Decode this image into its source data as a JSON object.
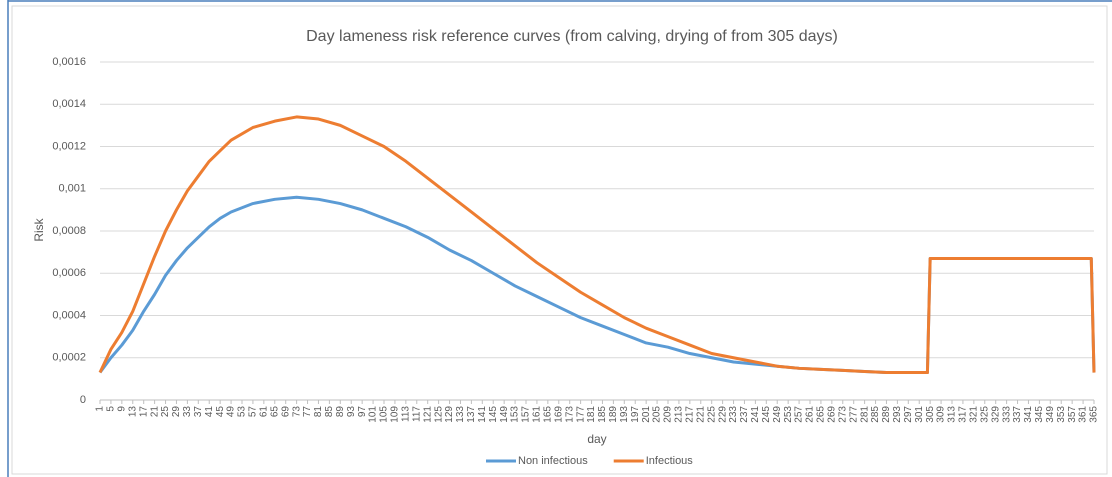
{
  "chart_data": {
    "type": "line",
    "title": "Day lameness risk reference curves (from calving, drying of from 305 days)",
    "x_label": "day",
    "y_label": "Risk",
    "x": [
      1,
      5,
      9,
      13,
      17,
      21,
      25,
      29,
      33,
      37,
      41,
      45,
      49,
      57,
      65,
      73,
      81,
      89,
      97,
      105,
      113,
      121,
      129,
      137,
      145,
      153,
      161,
      169,
      177,
      185,
      193,
      201,
      209,
      217,
      225,
      233,
      241,
      249,
      257,
      265,
      273,
      281,
      289,
      297,
      304,
      305,
      364,
      365
    ],
    "series": [
      {
        "name": "Non infectious",
        "color": "#5b9bd5",
        "values": [
          0.00013,
          0.0002,
          0.00026,
          0.00033,
          0.00042,
          0.0005,
          0.00059,
          0.00066,
          0.00072,
          0.00077,
          0.00082,
          0.00086,
          0.00089,
          0.00093,
          0.00095,
          0.00096,
          0.00095,
          0.00093,
          0.0009,
          0.00086,
          0.00082,
          0.00077,
          0.00071,
          0.00066,
          0.0006,
          0.00054,
          0.00049,
          0.00044,
          0.00039,
          0.00035,
          0.00031,
          0.00027,
          0.00025,
          0.00022,
          0.0002,
          0.00018,
          0.00017,
          0.00016,
          0.00015,
          0.000145,
          0.00014,
          0.000135,
          0.00013,
          0.00013,
          0.00013,
          0.00067,
          0.00067,
          0.00013
        ]
      },
      {
        "name": "Infectious",
        "color": "#ed7d31",
        "values": [
          0.00013,
          0.00024,
          0.00032,
          0.00042,
          0.00055,
          0.00068,
          0.0008,
          0.0009,
          0.00099,
          0.00106,
          0.00113,
          0.00118,
          0.00123,
          0.00129,
          0.00132,
          0.00134,
          0.00133,
          0.0013,
          0.00125,
          0.0012,
          0.00113,
          0.00105,
          0.00097,
          0.00089,
          0.00081,
          0.00073,
          0.00065,
          0.00058,
          0.00051,
          0.00045,
          0.00039,
          0.00034,
          0.0003,
          0.00026,
          0.00022,
          0.0002,
          0.00018,
          0.00016,
          0.00015,
          0.000145,
          0.00014,
          0.000135,
          0.00013,
          0.00013,
          0.00013,
          0.00067,
          0.00067,
          0.00013
        ]
      }
    ],
    "xlim": [
      1,
      365
    ],
    "xticks": [
      1,
      5,
      9,
      13,
      17,
      21,
      25,
      29,
      33,
      37,
      41,
      45,
      49,
      53,
      57,
      61,
      65,
      69,
      73,
      77,
      81,
      85,
      89,
      93,
      97,
      101,
      105,
      109,
      113,
      117,
      121,
      125,
      129,
      133,
      137,
      141,
      145,
      149,
      153,
      157,
      161,
      165,
      169,
      173,
      177,
      181,
      185,
      189,
      193,
      197,
      201,
      205,
      209,
      213,
      217,
      221,
      225,
      229,
      233,
      237,
      241,
      245,
      249,
      253,
      257,
      261,
      265,
      269,
      273,
      277,
      281,
      285,
      289,
      293,
      297,
      301,
      305,
      309,
      313,
      317,
      321,
      325,
      329,
      333,
      337,
      341,
      345,
      349,
      353,
      357,
      361,
      365
    ],
    "ylim": [
      0,
      0.0016
    ],
    "yticks": [
      0,
      {
        "value": 0.0002,
        "label": "0,0002"
      },
      {
        "value": 0.0004,
        "label": "0,0004"
      },
      {
        "value": 0.0006,
        "label": "0,0006"
      },
      {
        "value": 0.0008,
        "label": "0,0008"
      },
      {
        "value": 0.001,
        "label": "0,001"
      },
      {
        "value": 0.0012,
        "label": "0,0012"
      },
      {
        "value": 0.0014,
        "label": "0,0014"
      },
      {
        "value": 0.0016,
        "label": "0,0016"
      }
    ],
    "grid": true,
    "legend": "bottom"
  }
}
